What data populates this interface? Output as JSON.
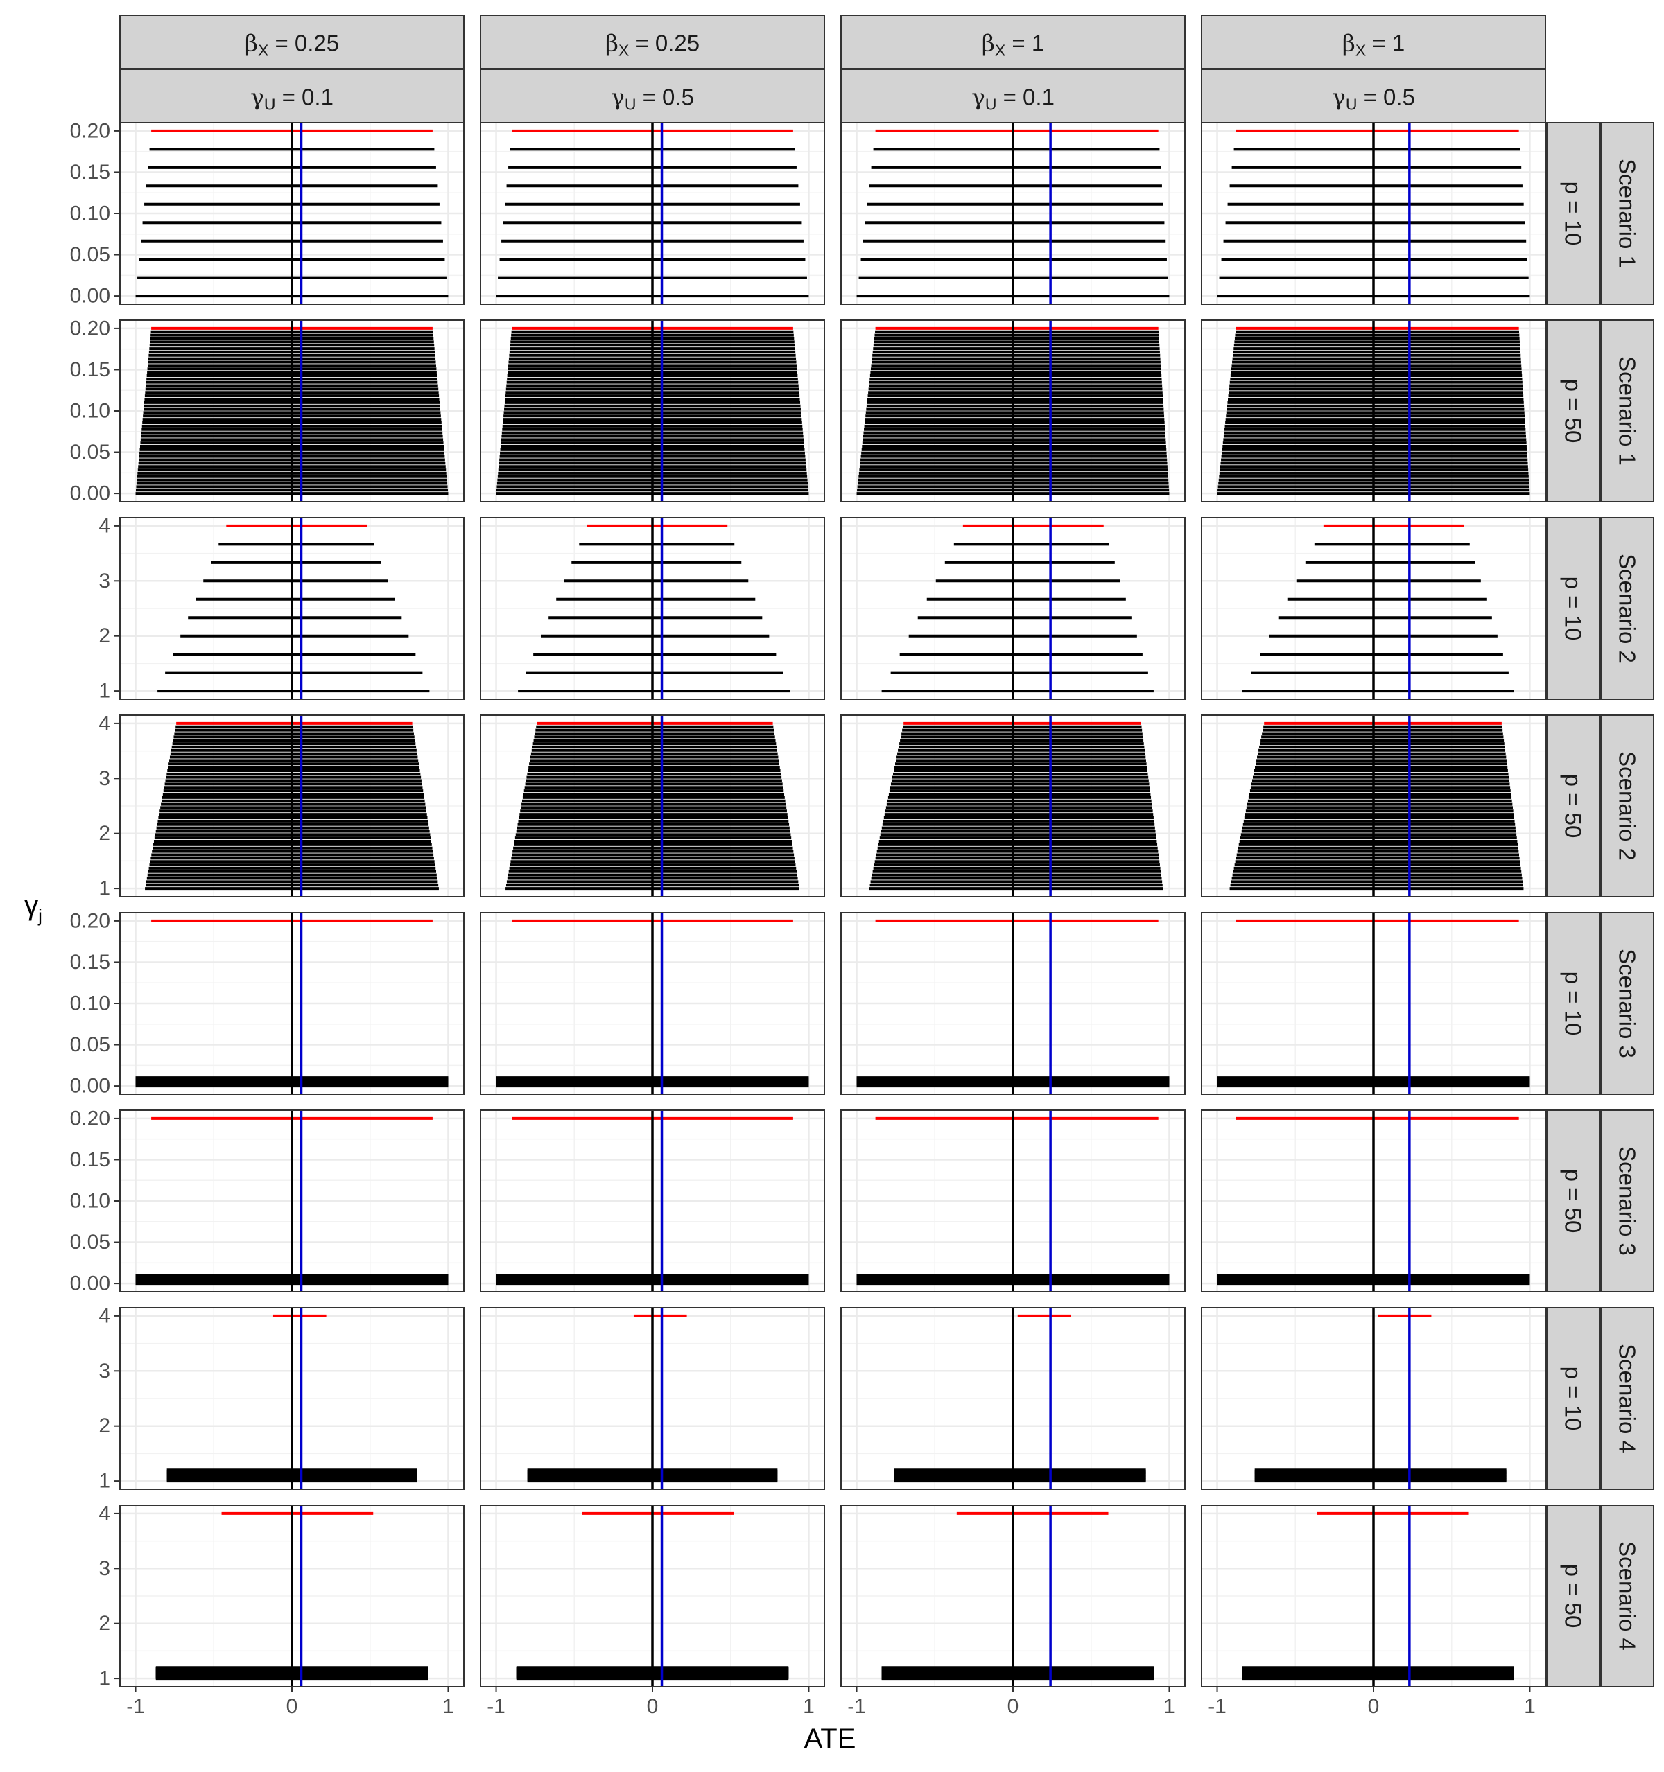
{
  "chart_data": {
    "type": "faceted-interval-plot",
    "xlabel": "ATE",
    "ylabel": "γ",
    "ylabel_subscript": "j",
    "xlim": [
      -1.1,
      1.1
    ],
    "x_ticks": [
      -1,
      0,
      1
    ],
    "x_tick_labels": [
      "-1",
      "0",
      "1"
    ],
    "grid": true,
    "line_colors": {
      "default": "#000000",
      "top": "#ff0000",
      "reference": "#000000",
      "estimate": "#0000cc"
    },
    "column_facets": [
      {
        "top_symbol": "β",
        "top_sub": "X",
        "top_value": " = 0.25",
        "bottom_symbol": "γ",
        "bottom_sub": "U",
        "bottom_value": " = 0.1",
        "estimate_line": 0.06
      },
      {
        "top_symbol": "β",
        "top_sub": "X",
        "top_value": " = 0.25",
        "bottom_symbol": "γ",
        "bottom_sub": "U",
        "bottom_value": " = 0.5",
        "estimate_line": 0.06
      },
      {
        "top_symbol": "β",
        "top_sub": "X",
        "top_value": " = 1",
        "bottom_symbol": "γ",
        "bottom_sub": "U",
        "bottom_value": " = 0.1",
        "estimate_line": 0.24
      },
      {
        "top_symbol": "β",
        "top_sub": "X",
        "top_value": " = 1",
        "bottom_symbol": "γ",
        "bottom_sub": "U",
        "bottom_value": " = 0.5",
        "estimate_line": 0.23
      }
    ],
    "reference_line": 0,
    "row_facets": [
      {
        "p_label": "p = 10",
        "scenario_label": "Scenario 1",
        "ylim": [
          -0.01,
          0.21
        ],
        "y_ticks": [
          0,
          0.05,
          0.1,
          0.15,
          0.2
        ],
        "y_tick_labels": [
          "0.00",
          "0.05",
          "0.10",
          "0.15",
          "0.20"
        ]
      },
      {
        "p_label": "p = 50",
        "scenario_label": "Scenario 1",
        "ylim": [
          -0.01,
          0.21
        ],
        "y_ticks": [
          0,
          0.05,
          0.1,
          0.15,
          0.2
        ],
        "y_tick_labels": [
          "0.00",
          "0.05",
          "0.10",
          "0.15",
          "0.20"
        ]
      },
      {
        "p_label": "p = 10",
        "scenario_label": "Scenario 2",
        "ylim": [
          0.85,
          4.15
        ],
        "y_ticks": [
          1,
          2,
          3,
          4
        ],
        "y_tick_labels": [
          "1",
          "2",
          "3",
          "4"
        ]
      },
      {
        "p_label": "p = 50",
        "scenario_label": "Scenario 2",
        "ylim": [
          0.85,
          4.15
        ],
        "y_ticks": [
          1,
          2,
          3,
          4
        ],
        "y_tick_labels": [
          "1",
          "2",
          "3",
          "4"
        ]
      },
      {
        "p_label": "p = 10",
        "scenario_label": "Scenario 3",
        "ylim": [
          -0.01,
          0.21
        ],
        "y_ticks": [
          0,
          0.05,
          0.1,
          0.15,
          0.2
        ],
        "y_tick_labels": [
          "0.00",
          "0.05",
          "0.10",
          "0.15",
          "0.20"
        ]
      },
      {
        "p_label": "p = 50",
        "scenario_label": "Scenario 3",
        "ylim": [
          -0.01,
          0.21
        ],
        "y_ticks": [
          0,
          0.05,
          0.1,
          0.15,
          0.2
        ],
        "y_tick_labels": [
          "0.00",
          "0.05",
          "0.10",
          "0.15",
          "0.20"
        ]
      },
      {
        "p_label": "p = 10",
        "scenario_label": "Scenario 4",
        "ylim": [
          0.85,
          4.15
        ],
        "y_ticks": [
          1,
          2,
          3,
          4
        ],
        "y_tick_labels": [
          "1",
          "2",
          "3",
          "4"
        ]
      },
      {
        "p_label": "p = 50",
        "scenario_label": "Scenario 4",
        "ylim": [
          0.85,
          4.15
        ],
        "y_ticks": [
          1,
          2,
          3,
          4
        ],
        "y_tick_labels": [
          "1",
          "2",
          "3",
          "4"
        ]
      }
    ],
    "intervals": [
      [
        {
          "n_lines": 10,
          "y_from": 0,
          "y_to": 0.2,
          "bottom_lower": -1,
          "bottom_upper": 1,
          "top_lower": -0.9,
          "top_upper": 0.9
        },
        {
          "n_lines": 10,
          "y_from": 0,
          "y_to": 0.2,
          "bottom_lower": -1,
          "bottom_upper": 1,
          "top_lower": -0.9,
          "top_upper": 0.9
        },
        {
          "n_lines": 10,
          "y_from": 0,
          "y_to": 0.2,
          "bottom_lower": -1,
          "bottom_upper": 1,
          "top_lower": -0.88,
          "top_upper": 0.93
        },
        {
          "n_lines": 10,
          "y_from": 0,
          "y_to": 0.2,
          "bottom_lower": -1,
          "bottom_upper": 1,
          "top_lower": -0.88,
          "top_upper": 0.93
        }
      ],
      [
        {
          "n_lines": 50,
          "y_from": 0,
          "y_to": 0.2,
          "bottom_lower": -1,
          "bottom_upper": 1,
          "top_lower": -0.9,
          "top_upper": 0.9
        },
        {
          "n_lines": 50,
          "y_from": 0,
          "y_to": 0.2,
          "bottom_lower": -1,
          "bottom_upper": 1,
          "top_lower": -0.9,
          "top_upper": 0.9
        },
        {
          "n_lines": 50,
          "y_from": 0,
          "y_to": 0.2,
          "bottom_lower": -1,
          "bottom_upper": 1,
          "top_lower": -0.88,
          "top_upper": 0.93
        },
        {
          "n_lines": 50,
          "y_from": 0,
          "y_to": 0.2,
          "bottom_lower": -1,
          "bottom_upper": 1,
          "top_lower": -0.88,
          "top_upper": 0.93
        }
      ],
      [
        {
          "n_lines": 10,
          "y_from": 1,
          "y_to": 4,
          "bottom_lower": -0.86,
          "bottom_upper": 0.88,
          "top_lower": -0.42,
          "top_upper": 0.48
        },
        {
          "n_lines": 10,
          "y_from": 1,
          "y_to": 4,
          "bottom_lower": -0.86,
          "bottom_upper": 0.88,
          "top_lower": -0.42,
          "top_upper": 0.48
        },
        {
          "n_lines": 10,
          "y_from": 1,
          "y_to": 4,
          "bottom_lower": -0.84,
          "bottom_upper": 0.9,
          "top_lower": -0.32,
          "top_upper": 0.58
        },
        {
          "n_lines": 10,
          "y_from": 1,
          "y_to": 4,
          "bottom_lower": -0.84,
          "bottom_upper": 0.9,
          "top_lower": -0.32,
          "top_upper": 0.58
        }
      ],
      [
        {
          "n_lines": 50,
          "y_from": 1,
          "y_to": 4,
          "bottom_lower": -0.94,
          "bottom_upper": 0.94,
          "top_lower": -0.74,
          "top_upper": 0.77
        },
        {
          "n_lines": 50,
          "y_from": 1,
          "y_to": 4,
          "bottom_lower": -0.94,
          "bottom_upper": 0.94,
          "top_lower": -0.74,
          "top_upper": 0.77
        },
        {
          "n_lines": 50,
          "y_from": 1,
          "y_to": 4,
          "bottom_lower": -0.92,
          "bottom_upper": 0.96,
          "top_lower": -0.7,
          "top_upper": 0.82
        },
        {
          "n_lines": 50,
          "y_from": 1,
          "y_to": 4,
          "bottom_lower": -0.92,
          "bottom_upper": 0.96,
          "top_lower": -0.7,
          "top_upper": 0.82
        }
      ],
      [
        {
          "n_lines": 10,
          "y_from": 0,
          "y_to": 0.01,
          "bottom_lower": -1,
          "bottom_upper": 1,
          "top_lower": -0.9,
          "top_upper": 0.9,
          "top_y": 0.2
        },
        {
          "n_lines": 10,
          "y_from": 0,
          "y_to": 0.01,
          "bottom_lower": -1,
          "bottom_upper": 1,
          "top_lower": -0.9,
          "top_upper": 0.9,
          "top_y": 0.2
        },
        {
          "n_lines": 10,
          "y_from": 0,
          "y_to": 0.01,
          "bottom_lower": -1,
          "bottom_upper": 1,
          "top_lower": -0.88,
          "top_upper": 0.93,
          "top_y": 0.2
        },
        {
          "n_lines": 10,
          "y_from": 0,
          "y_to": 0.01,
          "bottom_lower": -1,
          "bottom_upper": 1,
          "top_lower": -0.88,
          "top_upper": 0.93,
          "top_y": 0.2
        }
      ],
      [
        {
          "n_lines": 50,
          "y_from": 0,
          "y_to": 0.01,
          "bottom_lower": -1,
          "bottom_upper": 1,
          "top_lower": -0.9,
          "top_upper": 0.9,
          "top_y": 0.2
        },
        {
          "n_lines": 50,
          "y_from": 0,
          "y_to": 0.01,
          "bottom_lower": -1,
          "bottom_upper": 1,
          "top_lower": -0.9,
          "top_upper": 0.9,
          "top_y": 0.2
        },
        {
          "n_lines": 50,
          "y_from": 0,
          "y_to": 0.01,
          "bottom_lower": -1,
          "bottom_upper": 1,
          "top_lower": -0.88,
          "top_upper": 0.93,
          "top_y": 0.2
        },
        {
          "n_lines": 50,
          "y_from": 0,
          "y_to": 0.01,
          "bottom_lower": -1,
          "bottom_upper": 1,
          "top_lower": -0.88,
          "top_upper": 0.93,
          "top_y": 0.2
        }
      ],
      [
        {
          "n_lines": 10,
          "y_from": 1,
          "y_to": 1.2,
          "bottom_lower": -0.8,
          "bottom_upper": 0.8,
          "top_lower": -0.12,
          "top_upper": 0.22,
          "top_y": 4
        },
        {
          "n_lines": 10,
          "y_from": 1,
          "y_to": 1.2,
          "bottom_lower": -0.8,
          "bottom_upper": 0.8,
          "top_lower": -0.12,
          "top_upper": 0.22,
          "top_y": 4
        },
        {
          "n_lines": 10,
          "y_from": 1,
          "y_to": 1.2,
          "bottom_lower": -0.76,
          "bottom_upper": 0.85,
          "top_lower": 0.03,
          "top_upper": 0.37,
          "top_y": 4
        },
        {
          "n_lines": 10,
          "y_from": 1,
          "y_to": 1.2,
          "bottom_lower": -0.76,
          "bottom_upper": 0.85,
          "top_lower": 0.03,
          "top_upper": 0.37,
          "top_y": 4
        }
      ],
      [
        {
          "n_lines": 50,
          "y_from": 1,
          "y_to": 1.2,
          "bottom_lower": -0.87,
          "bottom_upper": 0.87,
          "top_lower": -0.45,
          "top_upper": 0.52,
          "top_y": 4
        },
        {
          "n_lines": 50,
          "y_from": 1,
          "y_to": 1.2,
          "bottom_lower": -0.87,
          "bottom_upper": 0.87,
          "top_lower": -0.45,
          "top_upper": 0.52,
          "top_y": 4
        },
        {
          "n_lines": 50,
          "y_from": 1,
          "y_to": 1.2,
          "bottom_lower": -0.84,
          "bottom_upper": 0.9,
          "top_lower": -0.36,
          "top_upper": 0.61,
          "top_y": 4
        },
        {
          "n_lines": 50,
          "y_from": 1,
          "y_to": 1.2,
          "bottom_lower": -0.84,
          "bottom_upper": 0.9,
          "top_lower": -0.36,
          "top_upper": 0.61,
          "top_y": 4
        }
      ]
    ]
  }
}
